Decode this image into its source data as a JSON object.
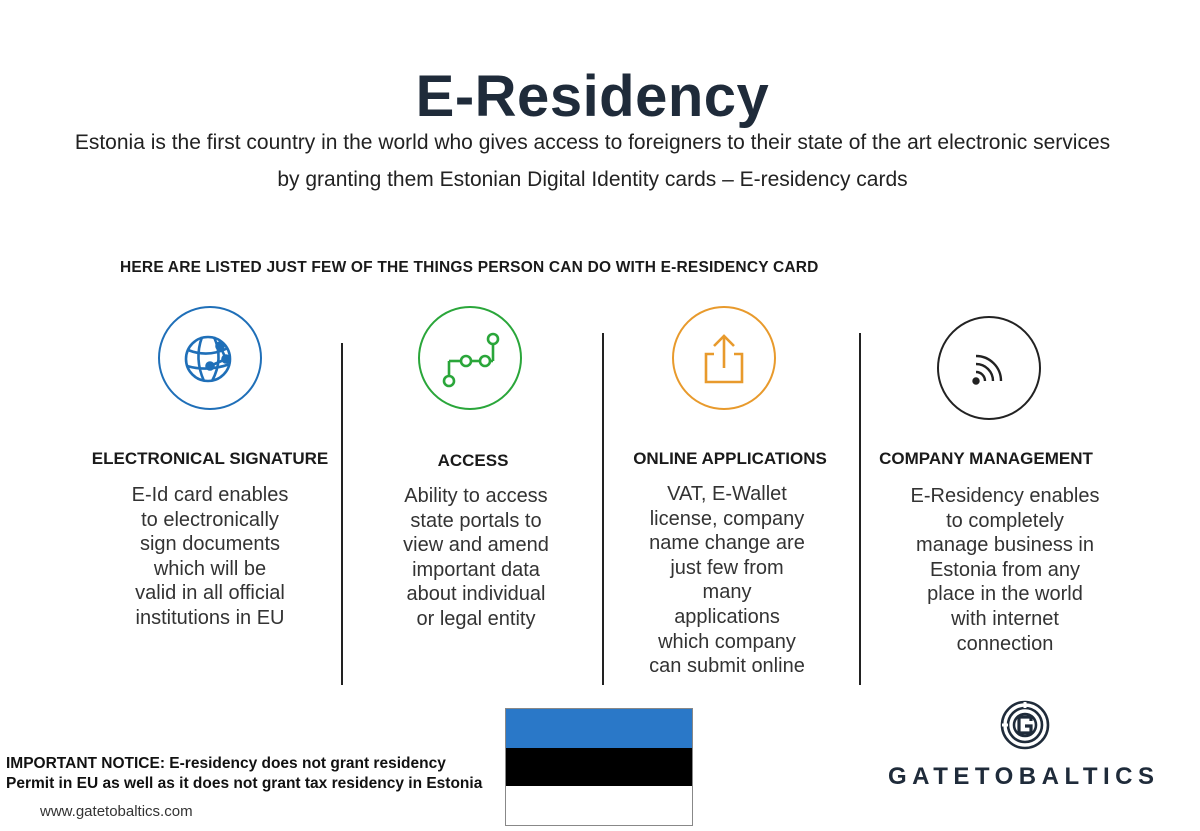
{
  "header": {
    "title": "E-Residency",
    "intro_line1": "Estonia is the first country in the world who gives access to foreigners to their state of the art electronic services",
    "intro_line2": "by granting them Estonian Digital Identity cards – E-residency cards"
  },
  "subheading": "HERE ARE LISTED JUST FEW OF THE THINGS PERSON CAN DO WITH E-RESIDENCY CARD",
  "features": [
    {
      "icon": "globe-network-icon",
      "color": "#1f6fb8",
      "title": "ELECTRONICAL SIGNATURE",
      "desc": [
        "E-Id card enables",
        "to electronically",
        "sign documents",
        "which will be",
        "valid in all official",
        "institutions in EU"
      ]
    },
    {
      "icon": "circuit-path-icon",
      "color": "#2aa63a",
      "title": "ACCESS",
      "desc": [
        "Ability to access",
        "state portals to",
        "view and amend",
        "important data",
        "about individual",
        "or legal entity"
      ]
    },
    {
      "icon": "upload-share-icon",
      "color": "#e89a2c",
      "title": "ONLINE APPLICATIONS",
      "desc": [
        "VAT, E-Wallet",
        "license, company",
        "name change are",
        "just few from",
        "many",
        "applications",
        "which company",
        "can submit online"
      ]
    },
    {
      "icon": "wireless-signal-icon",
      "color": "#222222",
      "title": "COMPANY MANAGEMENT",
      "desc": [
        "E-Residency enables",
        "to completely",
        "manage business in",
        "Estonia from any",
        "place in the world",
        "with internet",
        "connection"
      ]
    }
  ],
  "footer": {
    "notice_line1": "IMPORTANT NOTICE: E-residency does not grant residency",
    "notice_line2": "Permit in EU as well as it does not grant tax residency in Estonia",
    "website": "www.gatetobaltics.com",
    "flag_colors": [
      "#2a78c8",
      "#000000",
      "#ffffff"
    ],
    "brand_name": "GATETOBALTICS",
    "brand_logo": "G-maze-logo"
  }
}
